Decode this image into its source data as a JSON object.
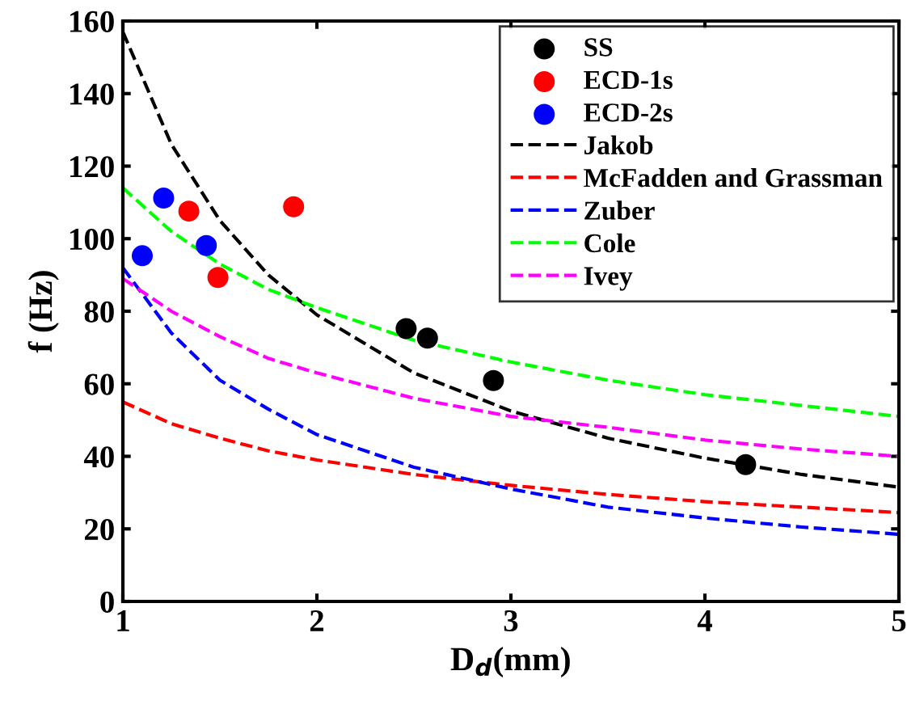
{
  "chart_data": {
    "type": "line",
    "xlabel": "D$_{d}$(mm)",
    "ylabel": "f (Hz)",
    "xlim": [
      1,
      5
    ],
    "ylim": [
      0,
      160
    ],
    "xticks": [
      1,
      2,
      3,
      4,
      5
    ],
    "yticks": [
      0,
      20,
      40,
      60,
      80,
      100,
      120,
      140,
      160
    ],
    "grid": false,
    "legend": "top right",
    "line_style": "dashed",
    "series": [
      {
        "name": "SS",
        "type": "scatter",
        "marker": "circle",
        "color": "#000000",
        "x": [
          2.46,
          2.57,
          2.91,
          4.21
        ],
        "values": [
          75.2,
          72.6,
          60.9,
          37.7
        ]
      },
      {
        "name": "ECD-1s",
        "type": "scatter",
        "marker": "circle",
        "color": "#ff0000",
        "x": [
          1.34,
          1.49,
          1.88
        ],
        "values": [
          107.6,
          89.3,
          108.8
        ]
      },
      {
        "name": "ECD-2s",
        "type": "scatter",
        "marker": "circle",
        "color": "#0000ff",
        "x": [
          1.1,
          1.21,
          1.43
        ],
        "values": [
          95.3,
          111.2,
          98.1
        ]
      },
      {
        "name": "Jakob",
        "color": "#000000",
        "x": [
          1,
          1.25,
          1.5,
          1.75,
          2,
          2.5,
          3,
          3.5,
          4,
          4.5,
          5
        ],
        "values": [
          157,
          126,
          105,
          90,
          79,
          63,
          52.5,
          45,
          39.5,
          35,
          31.5
        ]
      },
      {
        "name": "McFadden and Grassman",
        "color": "#ff0000",
        "x": [
          1,
          1.25,
          1.5,
          1.75,
          2,
          2.5,
          3,
          3.5,
          4,
          4.5,
          5
        ],
        "values": [
          55,
          49,
          45,
          41.5,
          39,
          35,
          32,
          29.5,
          27.5,
          26,
          24.5
        ]
      },
      {
        "name": "Zuber",
        "color": "#0000ff",
        "x": [
          1,
          1.25,
          1.5,
          1.75,
          2,
          2.5,
          3,
          3.5,
          4,
          4.5,
          5
        ],
        "values": [
          92,
          74,
          61,
          53,
          46,
          37,
          31,
          26,
          23,
          20.5,
          18.5
        ]
      },
      {
        "name": "Cole",
        "color": "#00ff00",
        "x": [
          1,
          1.25,
          1.5,
          1.75,
          2,
          2.5,
          3,
          3.5,
          4,
          4.5,
          5
        ],
        "values": [
          114,
          102,
          93,
          86,
          81,
          72,
          66,
          61,
          57,
          54,
          51
        ]
      },
      {
        "name": "Ivey",
        "color": "#ff00ff",
        "x": [
          1,
          1.25,
          1.5,
          1.75,
          2,
          2.5,
          3,
          3.5,
          4,
          4.5,
          5
        ],
        "values": [
          89,
          80,
          73,
          67,
          63,
          56,
          51,
          48,
          44.5,
          42,
          40
        ]
      }
    ]
  }
}
